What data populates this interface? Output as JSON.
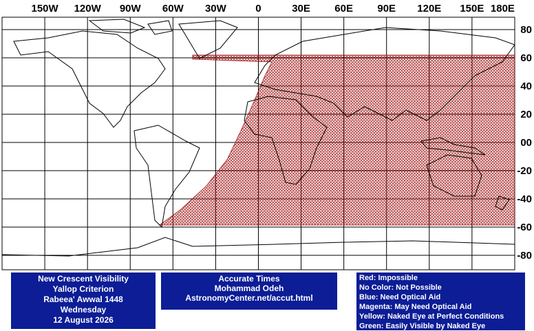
{
  "map": {
    "lon_labels": [
      "150W",
      "120W",
      "90W",
      "60W",
      "30W",
      "0",
      "30E",
      "60E",
      "90E",
      "120E",
      "150E",
      "180E"
    ],
    "lat_labels": [
      "80",
      "60",
      "40",
      "20",
      "00",
      "-20",
      "-40",
      "-60",
      "-80"
    ]
  },
  "info_box": [
    "New Crescent Visibility",
    "Yallop Criterion",
    "Rabeea' Awwal 1448",
    "Wednesday",
    "12 August 2026"
  ],
  "credit_box": [
    "Accurate Times",
    "Mohammad Odeh",
    "AstronomyCenter.net/accut.html"
  ],
  "legend": [
    "Red: Impossible",
    "No Color: Not Possible",
    "Blue: Need Optical Aid",
    "Magenta: May Need Optical Aid",
    "Yellow: Naked Eye at Perfect Conditions",
    "Green: Easily Visible by Naked Eye"
  ]
}
